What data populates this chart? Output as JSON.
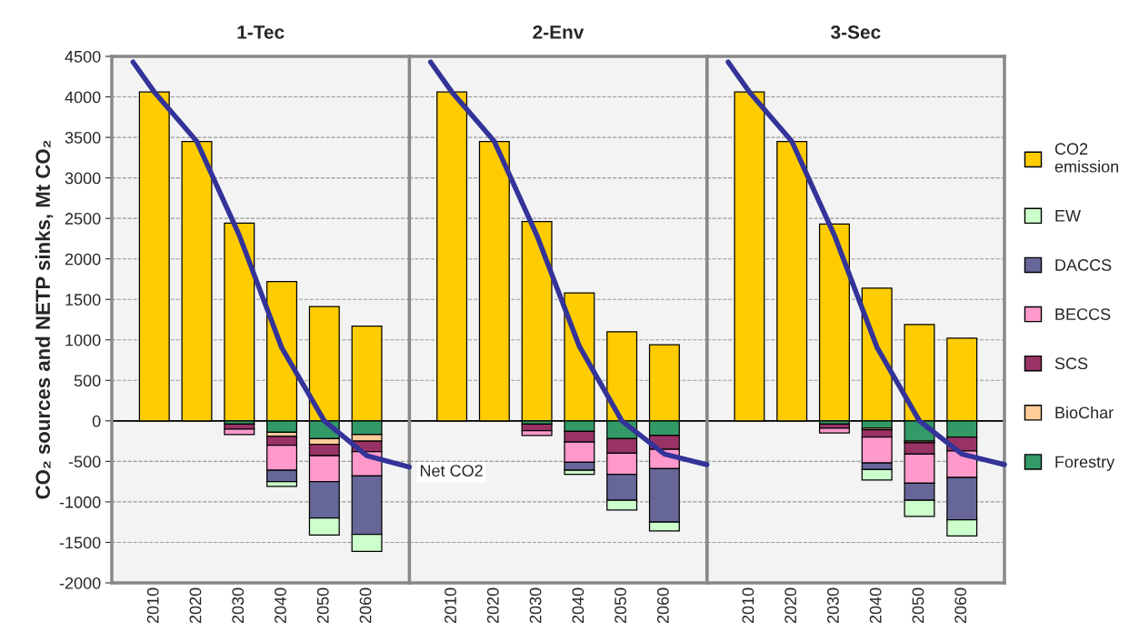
{
  "chart_data": [
    {
      "type": "bar",
      "stacked": true,
      "title": "1-Tec",
      "ylabel": "CO₂ sources and NETP sinks, Mt CO₂",
      "legend": "right",
      "x": [
        2010,
        2020,
        2030,
        2040,
        2050,
        2060
      ],
      "xlim": [
        2000,
        2070
      ],
      "xticks": [
        2010,
        2020,
        2030,
        2040,
        2050,
        2060
      ],
      "ylim": [
        -2000,
        4500
      ],
      "yticks": [
        -2000,
        -1500,
        -1000,
        -500,
        0,
        500,
        1000,
        1500,
        2000,
        2500,
        3000,
        3500,
        4000,
        4500
      ],
      "grid": "y",
      "series": [
        {
          "name": "CO2 emission",
          "color": "#ffcc00",
          "values": [
            4060,
            3450,
            2440,
            1720,
            1410,
            1170
          ]
        },
        {
          "name": "Forestry",
          "color": "#339966",
          "values": [
            null,
            null,
            -40,
            -140,
            -220,
            -170
          ]
        },
        {
          "name": "BioChar",
          "color": "#ffcc99",
          "values": [
            null,
            null,
            null,
            -50,
            -70,
            -80
          ]
        },
        {
          "name": "SCS",
          "color": "#993366",
          "values": [
            null,
            null,
            -60,
            -110,
            -140,
            -130
          ]
        },
        {
          "name": "BECCS",
          "color": "#ff99cc",
          "values": [
            null,
            null,
            -70,
            -310,
            -320,
            -300
          ]
        },
        {
          "name": "DACCS",
          "color": "#666699",
          "values": [
            null,
            null,
            null,
            -140,
            -450,
            -720
          ]
        },
        {
          "name": "EW",
          "color": "#ccffcc",
          "values": [
            null,
            null,
            null,
            -60,
            -210,
            -210
          ]
        },
        {
          "name": "Net CO2",
          "type": "line",
          "color": "#333399",
          "x": [
            2005,
            2010,
            2020,
            2030,
            2040,
            2050,
            2060,
            2070
          ],
          "values": [
            4430,
            4060,
            3450,
            2290,
            900,
            0,
            -430,
            -570
          ]
        }
      ]
    },
    {
      "type": "bar",
      "stacked": true,
      "title": "2-Env",
      "tick_labels": "x",
      "x": [
        2010,
        2020,
        2030,
        2040,
        2050,
        2060
      ],
      "xlim": [
        2000,
        2070
      ],
      "xticks": [
        2010,
        2020,
        2030,
        2040,
        2050,
        2060
      ],
      "ylim": [
        -2000,
        4500
      ],
      "grid": "y",
      "series": [
        {
          "color": "#ffcc00",
          "values": [
            4060,
            3450,
            2460,
            1580,
            1100,
            940
          ]
        },
        {
          "color": "#339966",
          "values": [
            null,
            null,
            -40,
            -130,
            -220,
            -180
          ]
        },
        {
          "color": "#993366",
          "values": [
            null,
            null,
            -80,
            -130,
            -180,
            -170
          ]
        },
        {
          "color": "#ff99cc",
          "values": [
            null,
            null,
            -60,
            -250,
            -260,
            -240
          ]
        },
        {
          "color": "#666699",
          "values": [
            null,
            null,
            null,
            -100,
            -320,
            -660
          ]
        },
        {
          "color": "#ccffcc",
          "values": [
            null,
            null,
            null,
            -50,
            -120,
            -110
          ]
        },
        {
          "type": "line",
          "color": "#333399",
          "x": [
            2005,
            2010,
            2020,
            2030,
            2040,
            2050,
            2060,
            2070
          ],
          "values": [
            4430,
            4060,
            3450,
            2290,
            920,
            0,
            -410,
            -540
          ]
        }
      ]
    },
    {
      "type": "bar",
      "stacked": true,
      "title": "3-Sec",
      "tick_labels": "x",
      "x": [
        2010,
        2020,
        2030,
        2040,
        2050,
        2060
      ],
      "xlim": [
        2000,
        2070
      ],
      "xticks": [
        2010,
        2020,
        2030,
        2040,
        2050,
        2060
      ],
      "ylim": [
        -2000,
        4500
      ],
      "grid": "y",
      "series": [
        {
          "color": "#ffcc00",
          "values": [
            4060,
            3450,
            2430,
            1640,
            1190,
            1020
          ]
        },
        {
          "color": "#339966",
          "values": [
            null,
            null,
            -40,
            -90,
            -250,
            -200
          ]
        },
        {
          "color": "#ffcc99",
          "values": [
            null,
            null,
            null,
            -20,
            -20,
            null
          ]
        },
        {
          "color": "#993366",
          "values": [
            null,
            null,
            -50,
            -90,
            -140,
            -170
          ]
        },
        {
          "color": "#ff99cc",
          "values": [
            null,
            null,
            -60,
            -320,
            -360,
            -330
          ]
        },
        {
          "color": "#666699",
          "values": [
            null,
            null,
            null,
            -80,
            -210,
            -520
          ]
        },
        {
          "color": "#ccffcc",
          "values": [
            null,
            null,
            null,
            -130,
            -200,
            -200
          ]
        },
        {
          "type": "line",
          "color": "#333399",
          "x": [
            2005,
            2010,
            2020,
            2030,
            2040,
            2050,
            2060,
            2070
          ],
          "values": [
            4430,
            4060,
            3450,
            2290,
            910,
            0,
            -410,
            -540
          ]
        }
      ]
    }
  ]
}
